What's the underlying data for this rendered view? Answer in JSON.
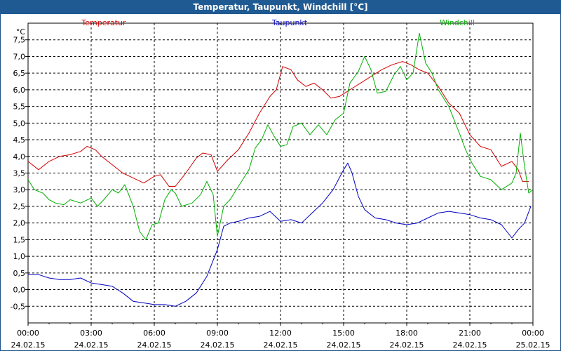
{
  "window": {
    "title": "Temperatur, Taupunkt, Windchill [°C]"
  },
  "chart_data": {
    "type": "line",
    "title": "Temperatur, Taupunkt, Windchill [°C]",
    "ylabel": "°C",
    "ylim": [
      -1.0,
      8.0
    ],
    "y_ticks": [
      "7,5",
      "7,0",
      "6,5",
      "6,0",
      "5,5",
      "5,0",
      "4,5",
      "4,0",
      "3,5",
      "3,0",
      "2,5",
      "2,0",
      "1,5",
      "1,0",
      "0,5",
      "0,0",
      "-0,5"
    ],
    "x_ticks": [
      {
        "time": "00:00",
        "date": "24.02.15"
      },
      {
        "time": "03:00",
        "date": "24.02.15"
      },
      {
        "time": "06:00",
        "date": "24.02.15"
      },
      {
        "time": "09:00",
        "date": "24.02.15"
      },
      {
        "time": "12:00",
        "date": "24.02.15"
      },
      {
        "time": "15:00",
        "date": "24.02.15"
      },
      {
        "time": "18:00",
        "date": "24.02.15"
      },
      {
        "time": "21:00",
        "date": "24.02.15"
      },
      {
        "time": "00:00",
        "date": "25.02.15"
      }
    ],
    "x_unit": "hours",
    "xlim": [
      0,
      24
    ],
    "grid": true,
    "legend_position": "top",
    "series": [
      {
        "name": "Temperatur",
        "color": "#d40000",
        "points": [
          [
            0,
            3.85
          ],
          [
            0.5,
            3.6
          ],
          [
            1,
            3.85
          ],
          [
            1.5,
            4.0
          ],
          [
            2,
            4.05
          ],
          [
            2.5,
            4.15
          ],
          [
            2.8,
            4.3
          ],
          [
            3.2,
            4.2
          ],
          [
            3.5,
            4.0
          ],
          [
            4,
            3.75
          ],
          [
            4.5,
            3.5
          ],
          [
            5,
            3.35
          ],
          [
            5.5,
            3.2
          ],
          [
            6,
            3.4
          ],
          [
            6.3,
            3.45
          ],
          [
            6.7,
            3.1
          ],
          [
            7,
            3.1
          ],
          [
            7.5,
            3.5
          ],
          [
            8,
            3.95
          ],
          [
            8.3,
            4.1
          ],
          [
            8.7,
            4.05
          ],
          [
            9,
            3.55
          ],
          [
            9.5,
            3.9
          ],
          [
            10,
            4.2
          ],
          [
            10.5,
            4.7
          ],
          [
            11,
            5.3
          ],
          [
            11.5,
            5.8
          ],
          [
            11.8,
            6.0
          ],
          [
            12.1,
            6.7
          ],
          [
            12.5,
            6.6
          ],
          [
            12.8,
            6.3
          ],
          [
            13.2,
            6.1
          ],
          [
            13.6,
            6.2
          ],
          [
            14,
            6.0
          ],
          [
            14.4,
            5.75
          ],
          [
            14.8,
            5.8
          ],
          [
            15.3,
            6.0
          ],
          [
            15.8,
            6.2
          ],
          [
            16.3,
            6.4
          ],
          [
            16.8,
            6.6
          ],
          [
            17.3,
            6.75
          ],
          [
            17.8,
            6.85
          ],
          [
            18.2,
            6.75
          ],
          [
            18.6,
            6.6
          ],
          [
            19,
            6.5
          ],
          [
            19.5,
            6.1
          ],
          [
            20,
            5.6
          ],
          [
            20.5,
            5.3
          ],
          [
            21,
            4.65
          ],
          [
            21.5,
            4.3
          ],
          [
            22,
            4.2
          ],
          [
            22.5,
            3.7
          ],
          [
            23,
            3.85
          ],
          [
            23.3,
            3.6
          ],
          [
            23.5,
            3.25
          ],
          [
            23.8,
            3.25
          ]
        ]
      },
      {
        "name": "Taupunkt",
        "color": "#0000c0",
        "points": [
          [
            0,
            0.45
          ],
          [
            0.5,
            0.45
          ],
          [
            1,
            0.35
          ],
          [
            1.5,
            0.3
          ],
          [
            2,
            0.3
          ],
          [
            2.5,
            0.35
          ],
          [
            3,
            0.2
          ],
          [
            3.5,
            0.15
          ],
          [
            4,
            0.1
          ],
          [
            4.5,
            -0.1
          ],
          [
            5,
            -0.35
          ],
          [
            5.5,
            -0.4
          ],
          [
            6,
            -0.45
          ],
          [
            6.5,
            -0.45
          ],
          [
            7,
            -0.5
          ],
          [
            7.5,
            -0.35
          ],
          [
            8,
            -0.1
          ],
          [
            8.5,
            0.4
          ],
          [
            9,
            1.2
          ],
          [
            9.3,
            1.9
          ],
          [
            9.6,
            2.0
          ],
          [
            10,
            2.05
          ],
          [
            10.5,
            2.15
          ],
          [
            11,
            2.2
          ],
          [
            11.5,
            2.35
          ],
          [
            12,
            2.05
          ],
          [
            12.5,
            2.1
          ],
          [
            13,
            2.0
          ],
          [
            13.5,
            2.3
          ],
          [
            14,
            2.6
          ],
          [
            14.5,
            3.0
          ],
          [
            15,
            3.6
          ],
          [
            15.2,
            3.8
          ],
          [
            15.4,
            3.5
          ],
          [
            15.7,
            2.8
          ],
          [
            16,
            2.4
          ],
          [
            16.5,
            2.15
          ],
          [
            17,
            2.1
          ],
          [
            17.5,
            2.0
          ],
          [
            18,
            1.95
          ],
          [
            18.5,
            2.0
          ],
          [
            19,
            2.15
          ],
          [
            19.5,
            2.3
          ],
          [
            20,
            2.35
          ],
          [
            20.5,
            2.3
          ],
          [
            21,
            2.25
          ],
          [
            21.5,
            2.15
          ],
          [
            22,
            2.1
          ],
          [
            22.5,
            1.95
          ],
          [
            23,
            1.55
          ],
          [
            23.3,
            1.8
          ],
          [
            23.6,
            2.0
          ],
          [
            23.9,
            2.5
          ]
        ]
      },
      {
        "name": "Windchill",
        "color": "#00b000",
        "points": [
          [
            0,
            3.3
          ],
          [
            0.3,
            3.0
          ],
          [
            0.7,
            2.9
          ],
          [
            1,
            2.7
          ],
          [
            1.3,
            2.6
          ],
          [
            1.7,
            2.55
          ],
          [
            2,
            2.7
          ],
          [
            2.5,
            2.6
          ],
          [
            3,
            2.75
          ],
          [
            3.3,
            2.5
          ],
          [
            3.6,
            2.7
          ],
          [
            4,
            3.0
          ],
          [
            4.3,
            2.9
          ],
          [
            4.6,
            3.15
          ],
          [
            5,
            2.5
          ],
          [
            5.3,
            1.75
          ],
          [
            5.6,
            1.5
          ],
          [
            5.9,
            1.95
          ],
          [
            6.2,
            2.0
          ],
          [
            6.5,
            2.7
          ],
          [
            6.8,
            3.0
          ],
          [
            7,
            2.9
          ],
          [
            7.3,
            2.5
          ],
          [
            7.8,
            2.6
          ],
          [
            8.2,
            2.85
          ],
          [
            8.5,
            3.25
          ],
          [
            8.8,
            2.85
          ],
          [
            9,
            1.6
          ],
          [
            9.3,
            2.5
          ],
          [
            9.6,
            2.7
          ],
          [
            10,
            3.1
          ],
          [
            10.5,
            3.6
          ],
          [
            10.8,
            4.25
          ],
          [
            11.1,
            4.5
          ],
          [
            11.4,
            4.95
          ],
          [
            11.7,
            4.6
          ],
          [
            12,
            4.3
          ],
          [
            12.3,
            4.35
          ],
          [
            12.6,
            4.9
          ],
          [
            13,
            5.0
          ],
          [
            13.4,
            4.65
          ],
          [
            13.8,
            4.95
          ],
          [
            14.2,
            4.65
          ],
          [
            14.6,
            5.1
          ],
          [
            15,
            5.3
          ],
          [
            15.3,
            6.2
          ],
          [
            15.7,
            6.55
          ],
          [
            16,
            7.0
          ],
          [
            16.3,
            6.6
          ],
          [
            16.6,
            5.9
          ],
          [
            17,
            5.95
          ],
          [
            17.4,
            6.45
          ],
          [
            17.7,
            6.7
          ],
          [
            18.0,
            6.3
          ],
          [
            18.3,
            6.5
          ],
          [
            18.6,
            7.7
          ],
          [
            18.9,
            6.8
          ],
          [
            19.2,
            6.5
          ],
          [
            19.5,
            6.0
          ],
          [
            20,
            5.5
          ],
          [
            20.5,
            4.7
          ],
          [
            20.8,
            4.2
          ],
          [
            21.1,
            3.8
          ],
          [
            21.5,
            3.4
          ],
          [
            22,
            3.3
          ],
          [
            22.5,
            3.0
          ],
          [
            23,
            3.2
          ],
          [
            23.2,
            3.5
          ],
          [
            23.4,
            4.7
          ],
          [
            23.6,
            3.7
          ],
          [
            23.8,
            2.9
          ],
          [
            24,
            3.0
          ]
        ]
      }
    ]
  }
}
